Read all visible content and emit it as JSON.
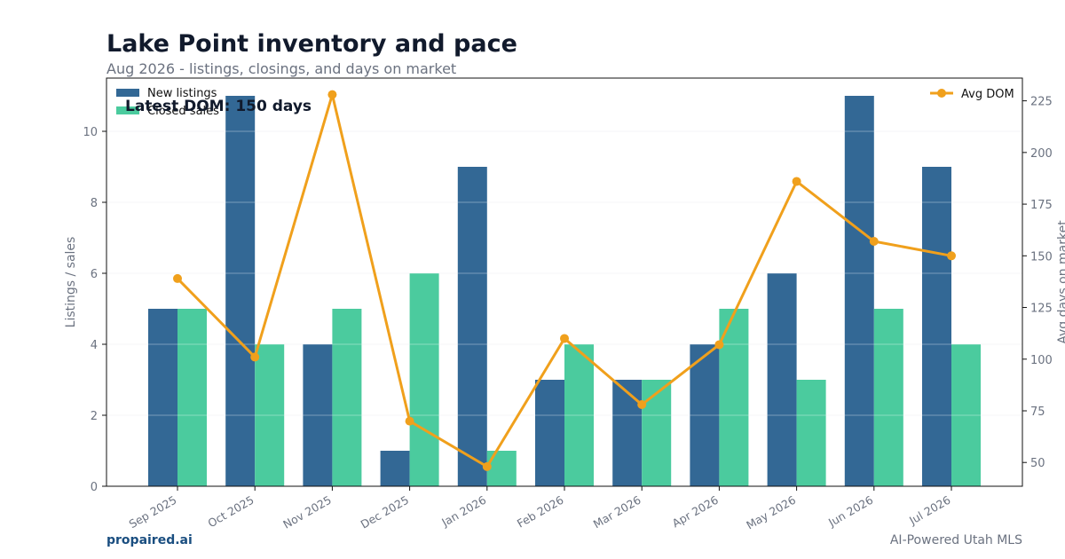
{
  "header": {
    "title": "Lake Point inventory and pace",
    "subtitle": "Aug 2026 - listings, closings, and days on market"
  },
  "footer": {
    "brand": "propaired.ai",
    "tagline": "AI-Powered Utah MLS"
  },
  "annotation": "Latest DOM: 150 days",
  "colors": {
    "new_listings": "#336895",
    "closed_sales": "#4bcb9e",
    "avg_dom": "#f0a01c",
    "axis_text": "#6b7280"
  },
  "chart_data": {
    "type": "bar",
    "categories": [
      "Sep 2025",
      "Oct 2025",
      "Nov 2025",
      "Dec 2025",
      "Jan 2026",
      "Feb 2026",
      "Mar 2026",
      "Apr 2026",
      "May 2026",
      "Jun 2026",
      "Jul 2026"
    ],
    "series": [
      {
        "name": "New listings",
        "type": "bar",
        "axis": "left",
        "values": [
          5,
          11,
          4,
          1,
          9,
          3,
          3,
          4,
          6,
          11,
          9
        ]
      },
      {
        "name": "Closed sales",
        "type": "bar",
        "axis": "left",
        "values": [
          5,
          4,
          5,
          6,
          1,
          4,
          3,
          5,
          3,
          5,
          4
        ]
      },
      {
        "name": "Avg DOM",
        "type": "line",
        "axis": "right",
        "values": [
          139,
          101,
          228,
          70,
          48,
          110,
          78,
          107,
          186,
          157,
          150
        ]
      }
    ],
    "ylabel": "Listings / sales",
    "y2label": "Avg days on market",
    "ylim": [
      0,
      11.5
    ],
    "y2lim": [
      38.5,
      236
    ],
    "yticks": [
      0,
      2,
      4,
      6,
      8,
      10
    ],
    "y2ticks": [
      50,
      75,
      100,
      125,
      150,
      175,
      200,
      225
    ],
    "legend_left": "top-left",
    "legend_right": "top-right",
    "grid": true
  }
}
